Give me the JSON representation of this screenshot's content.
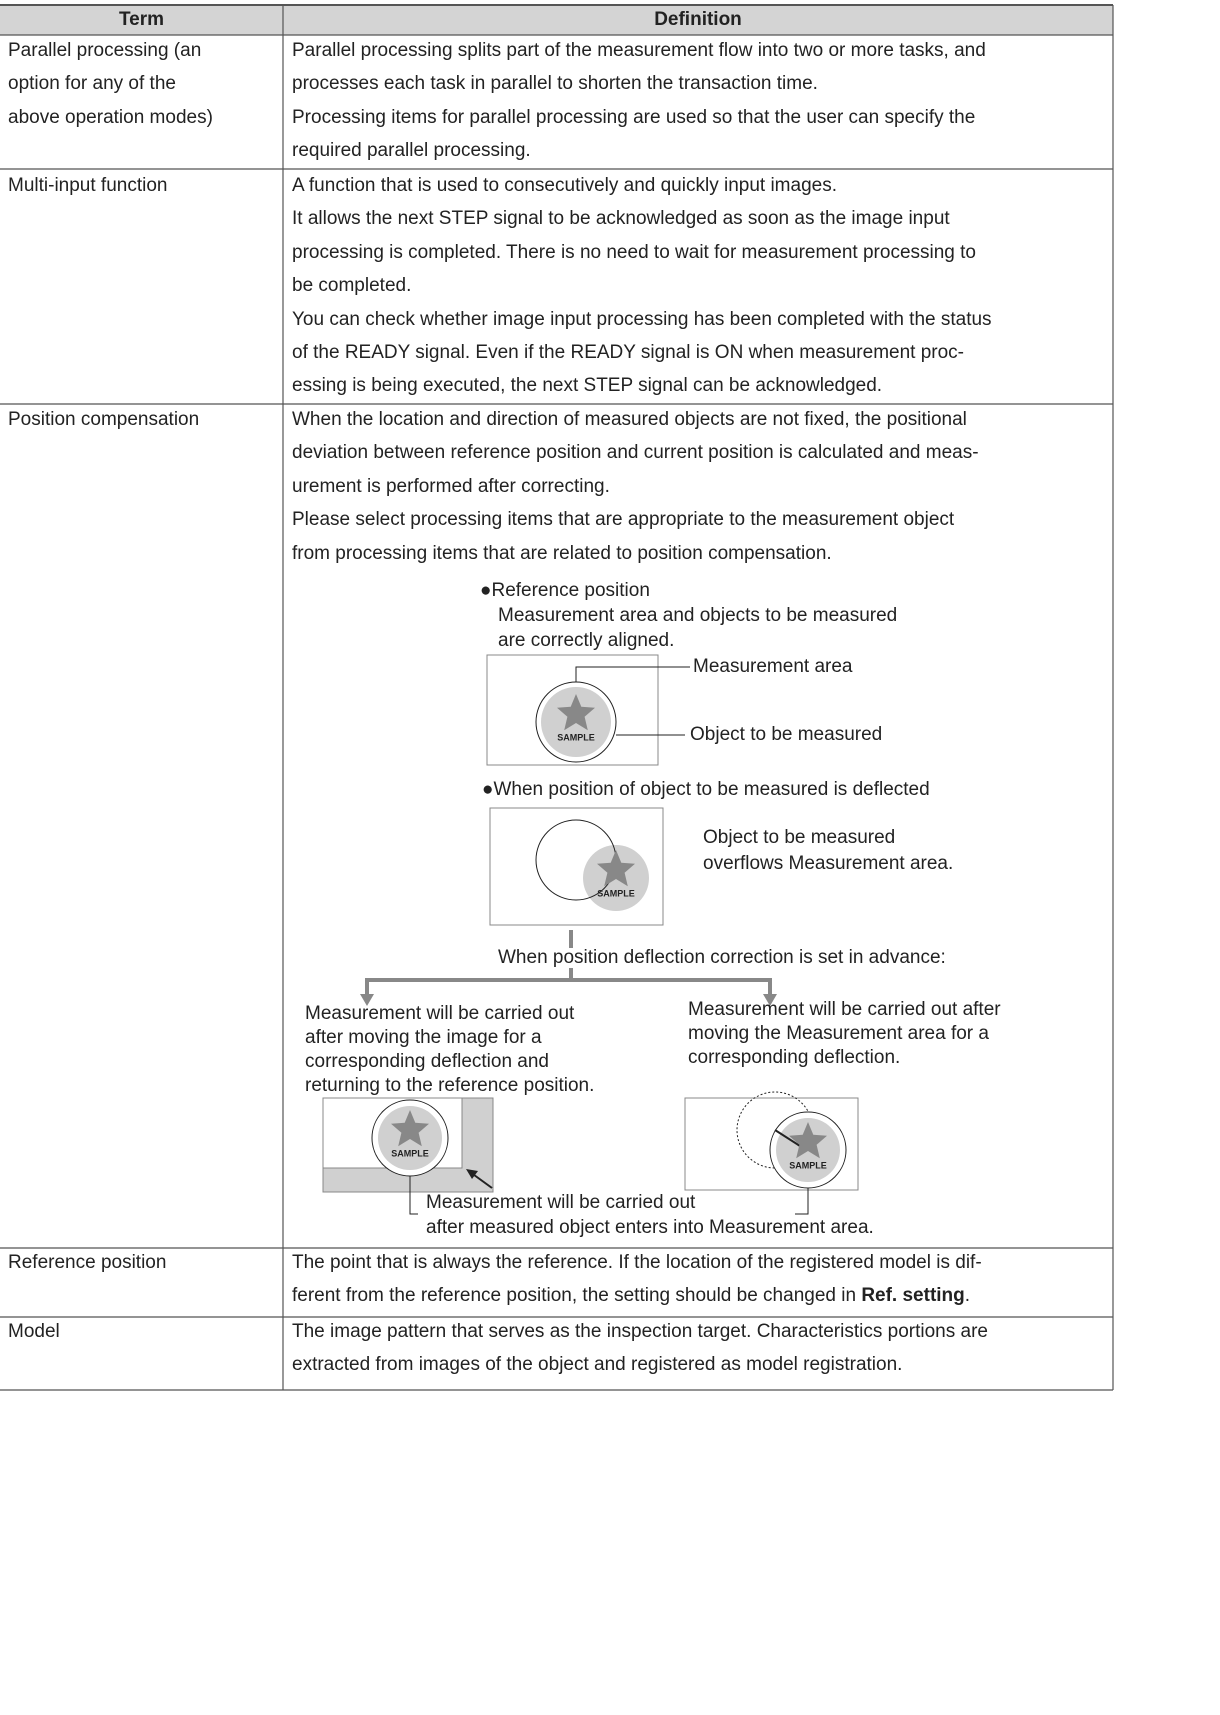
{
  "table": {
    "header": [
      "Term",
      "Definition"
    ],
    "rows": [
      {
        "term": [
          "Parallel processing (an",
          "option for any of the",
          "above operation modes)"
        ],
        "definition": [
          "Parallel processing splits part of the measurement flow into two or more tasks, and",
          "processes each task in parallel to shorten the transaction time.",
          "Processing items for parallel processing are used so that the user can specify the",
          "required parallel processing."
        ]
      },
      {
        "term": [
          "Multi-input function"
        ],
        "definition": [
          "A function that is used to consecutively and quickly input images.",
          "It allows the next STEP signal to be acknowledged as soon as the image input",
          "processing is completed. There is no need to wait for measurement processing to",
          "be completed.",
          "You can check whether image input processing has been completed with the status",
          "of the READY signal. Even if the READY signal is ON when measurement proc-",
          "essing is being executed, the next STEP signal can be acknowledged."
        ]
      },
      {
        "term": [
          "Position compensation"
        ],
        "definition": [
          "When the location and direction of measured objects are not fixed, the positional",
          "deviation between reference position and current position is calculated and meas-",
          "urement is performed after correcting.",
          "Please select processing items that are appropriate to the measurement object",
          "from processing items that are related to position compensation."
        ]
      },
      {
        "term": [
          "Reference position"
        ],
        "definition": [
          "The point that is always the reference. If the location of the registered model is dif-",
          [
            "ferent from the reference position, the setting should be changed in ",
            "Ref. setting",
            "."
          ]
        ]
      },
      {
        "term": [
          "Model"
        ],
        "definition": [
          "The image pattern that serves as the inspection target. Characteristics portions are",
          "extracted from images of the object and registered as model registration."
        ]
      }
    ]
  },
  "diagram": {
    "reference_heading": "●Reference position",
    "reference_lines": [
      "Measurement area and objects to be measured",
      "are correctly aligned."
    ],
    "measurement_area": "Measurement area",
    "object_label": "Object to be measured",
    "sample": "SAMPLE",
    "deflected_heading": "●When position of object to be measured is deflected",
    "deflected_lines": [
      "Object to be measured",
      "overflows Measurement area."
    ],
    "correction_note": "When position deflection correction is set in advance:",
    "left_lines": [
      "Measurement will be carried out",
      "after moving the image for a",
      "corresponding deflection and",
      "returning to the reference position."
    ],
    "right_lines": [
      "Measurement will be carried out after",
      "moving the Measurement area for a",
      "corresponding deflection."
    ],
    "result_lines": [
      "Measurement will be carried out",
      "after measured object enters into Measurement area."
    ]
  }
}
